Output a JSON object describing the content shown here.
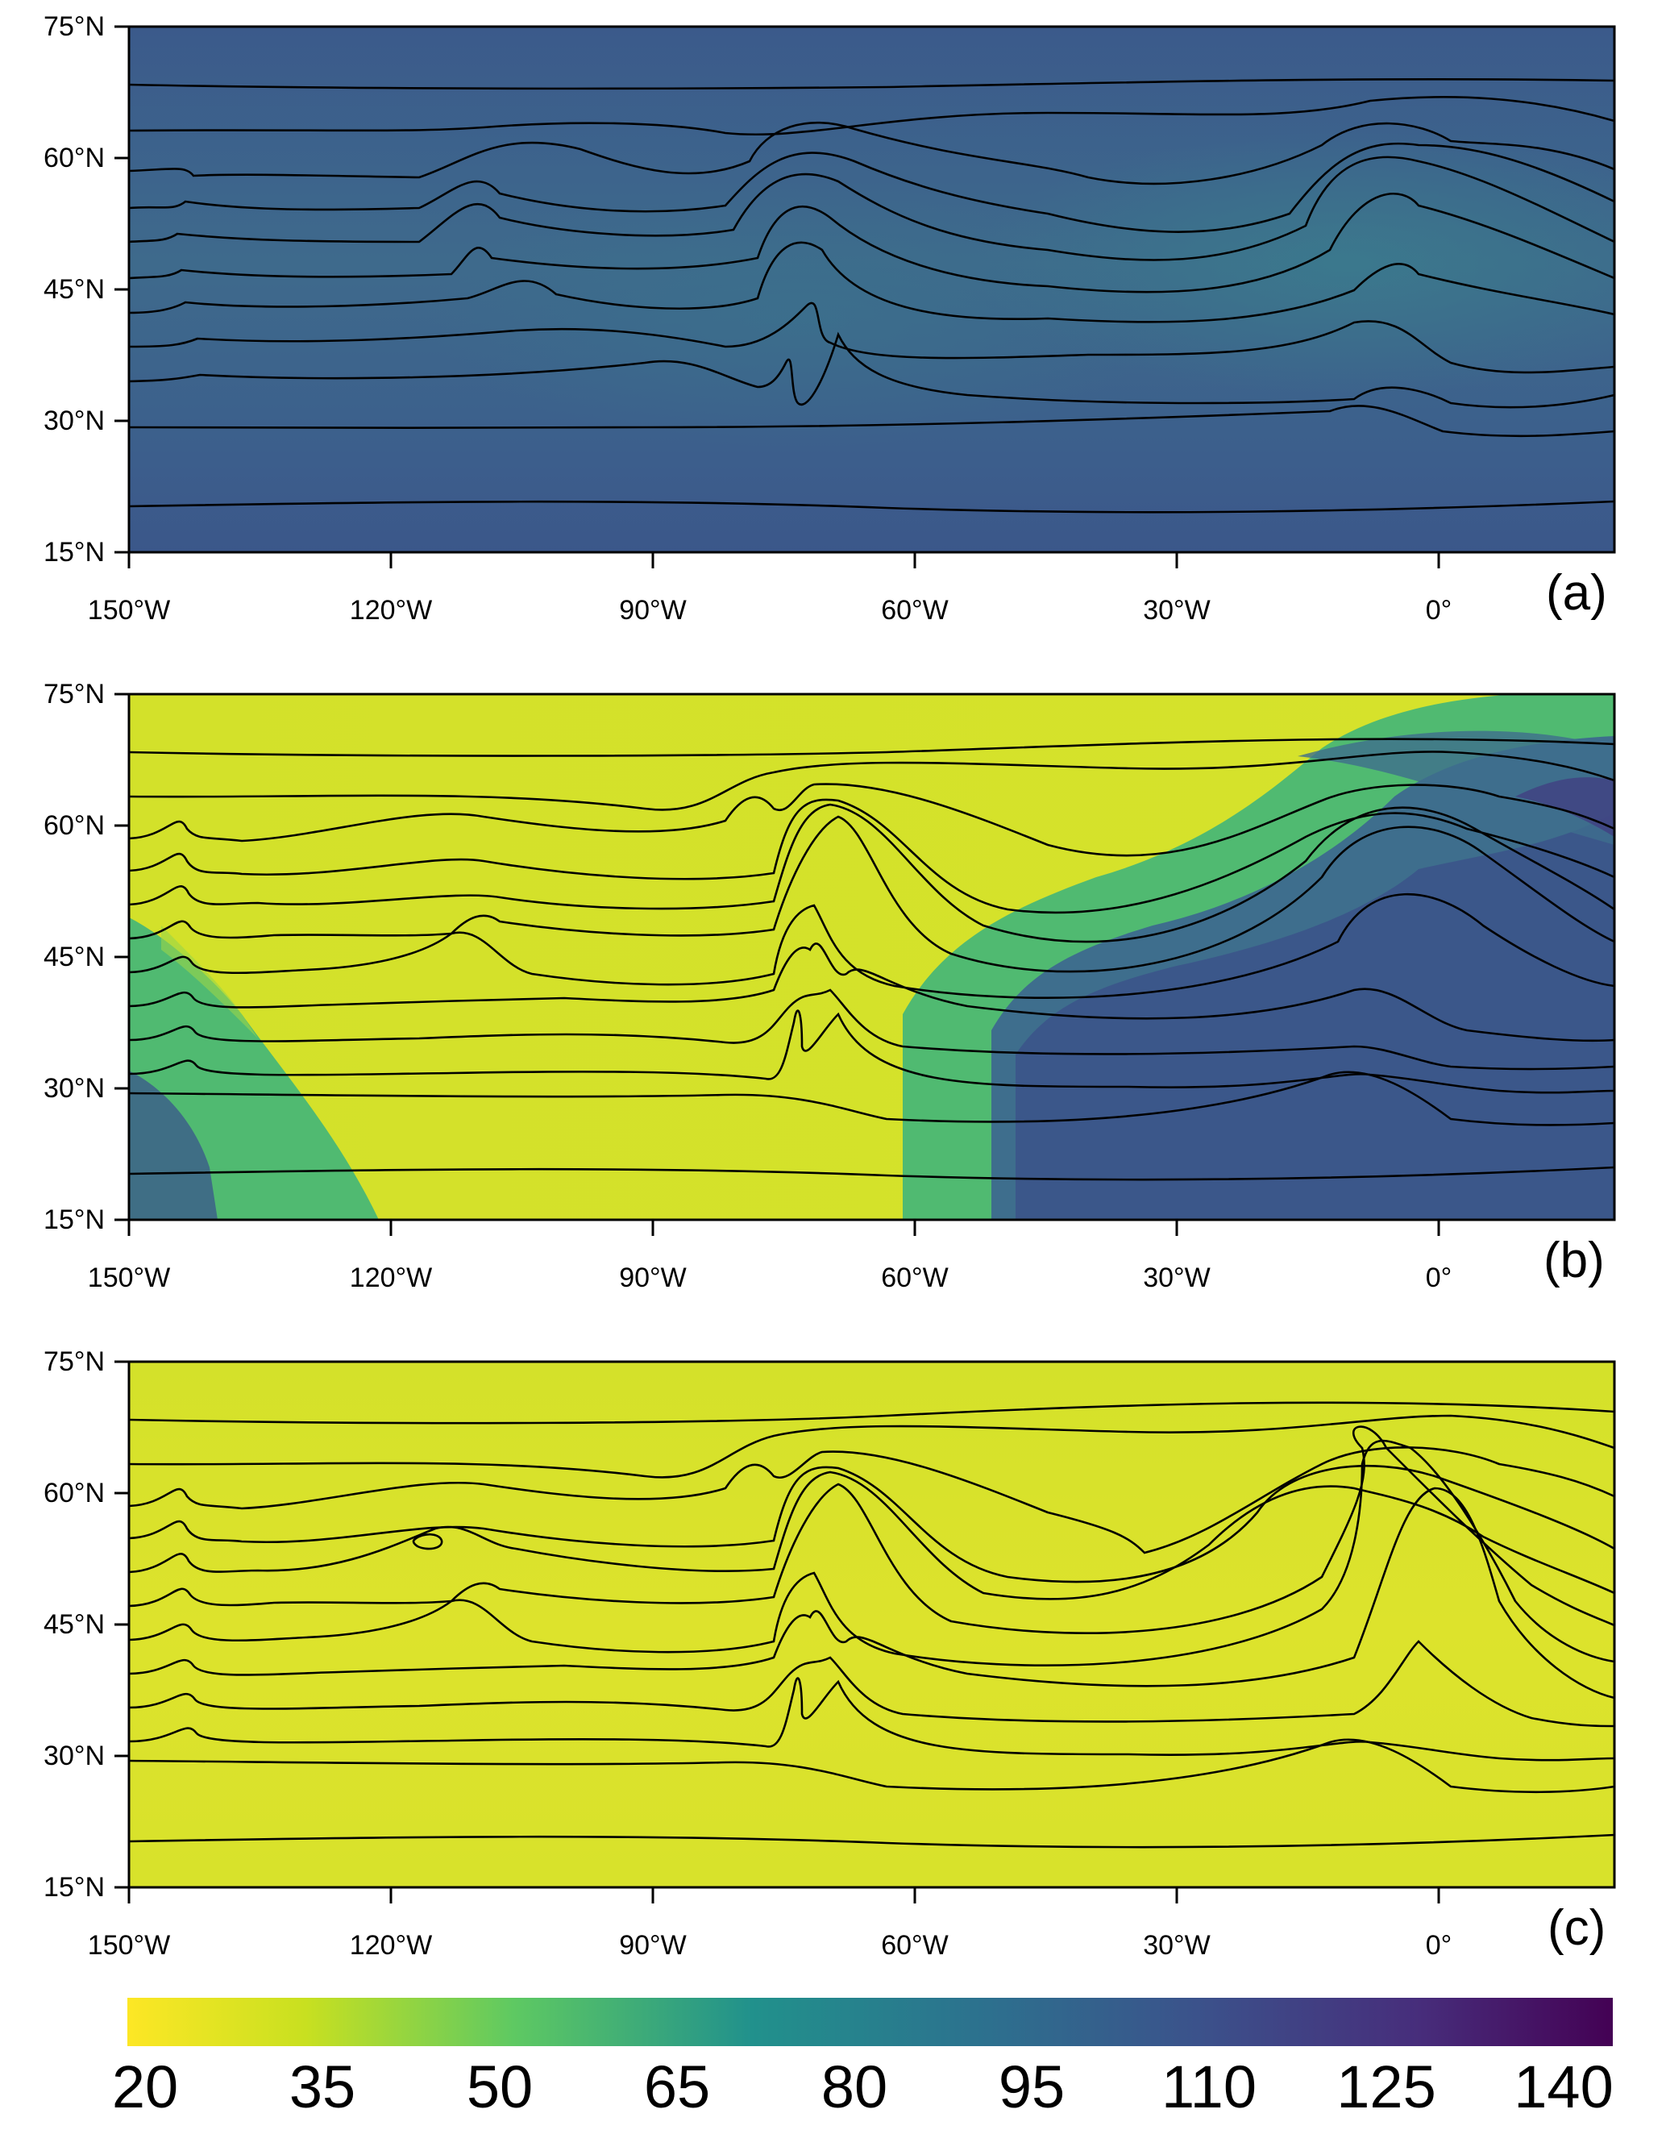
{
  "panels": [
    {
      "id": "a",
      "label": "(a)",
      "y_ticks": [
        "75°N",
        "60°N",
        "45°N",
        "30°N",
        "15°N"
      ],
      "x_ticks": [
        "150°W",
        "120°W",
        "90°W",
        "60°W",
        "30°W",
        "0°"
      ],
      "field_level": 105,
      "field_colors": [
        "#3b5d8c",
        "#3e6a8c"
      ]
    },
    {
      "id": "b",
      "label": "(b)",
      "y_ticks": [
        "75°N",
        "60°N",
        "45°N",
        "30°N",
        "15°N"
      ],
      "x_ticks": [
        "150°W",
        "120°W",
        "90°W",
        "60°W",
        "30°W",
        "0°"
      ],
      "field_level": 25,
      "field_colors": [
        "#d6e22b",
        "#3f7a8d",
        "#3b5b8b",
        "#41b679"
      ]
    },
    {
      "id": "c",
      "label": "(c)",
      "y_ticks": [
        "75°N",
        "60°N",
        "45°N",
        "30°N",
        "15°N"
      ],
      "x_ticks": [
        "150°W",
        "120°W",
        "90°W",
        "60°W",
        "30°W",
        "0°"
      ],
      "field_level": 24,
      "field_colors": [
        "#d4e12a",
        "#e0e42c"
      ]
    }
  ],
  "colorbar": {
    "ticks": [
      "20",
      "35",
      "50",
      "65",
      "80",
      "95",
      "110",
      "125",
      "140"
    ],
    "min": 20,
    "max": 140,
    "colors": [
      "#fde725",
      "#c8e020",
      "#5ec962",
      "#21918c",
      "#2c728e",
      "#3b528b",
      "#472d7b",
      "#440154"
    ]
  }
}
